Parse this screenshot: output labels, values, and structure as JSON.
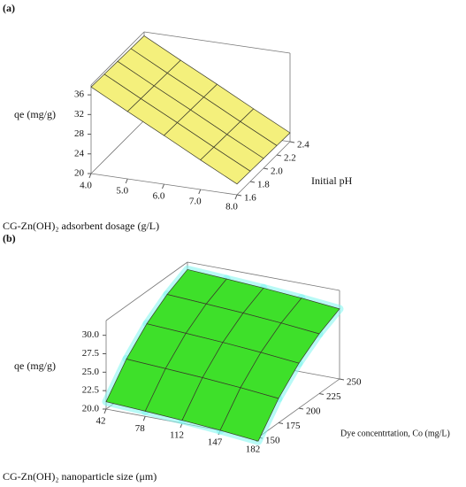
{
  "chart_data": [
    {
      "type": "surface",
      "panel_label": "(a)",
      "x_label": "CG-Zn(OH)₂ adsorbent dosage (g/L)",
      "y_label": "Initial pH",
      "z_label": "qe (mg/g)",
      "color": "#f4f07c",
      "x": [
        4,
        5,
        6,
        7,
        8
      ],
      "y": [
        1.6,
        1.8,
        2.0,
        2.2,
        2.4
      ],
      "z": [
        [
          37.6,
          33.7,
          29.9,
          26.0,
          22.2
        ],
        [
          37.5,
          33.6,
          29.8,
          25.9,
          22.1
        ],
        [
          37.4,
          33.5,
          29.7,
          25.8,
          22.0
        ],
        [
          37.3,
          33.4,
          29.6,
          25.7,
          21.9
        ],
        [
          37.2,
          33.3,
          29.5,
          25.6,
          21.8
        ]
      ],
      "xlim": [
        4,
        8
      ],
      "ylim": [
        1.6,
        2.4
      ],
      "zlim": [
        20,
        38
      ],
      "xticks": [
        {
          "value": 4,
          "label": "4.0"
        },
        {
          "value": 5,
          "label": "5.0"
        },
        {
          "value": 6,
          "label": "6.0"
        },
        {
          "value": 7,
          "label": "7.0"
        },
        {
          "value": 8,
          "label": "8.0"
        }
      ],
      "yticks": [
        1.6,
        1.8,
        {
          "value": 2,
          "label": "2.0"
        },
        2.2,
        2.4
      ],
      "zticks": [
        20,
        24,
        28,
        32,
        36
      ]
    },
    {
      "type": "surface",
      "panel_label": "(b)",
      "x_label": "CG-Zn(OH)₂ nanoparticle size (μm)",
      "y_label": "Dye concentrtation, Co (mg/L)",
      "z_label": "qe (mg/g)",
      "color": "#3ee02a",
      "glow": "#7ff7f0",
      "x": [
        42,
        78,
        112,
        147,
        182
      ],
      "y": [
        150,
        175,
        200,
        225,
        250
      ],
      "z": [
        [
          21.0,
          20.7,
          20.4,
          20.0,
          19.5
        ],
        [
          24.8,
          24.5,
          24.2,
          23.8,
          23.3
        ],
        [
          27.6,
          27.3,
          27.0,
          26.6,
          26.1
        ],
        [
          29.6,
          29.3,
          29.0,
          28.6,
          28.1
        ],
        [
          31.0,
          30.7,
          30.4,
          30.0,
          29.5
        ]
      ],
      "xlim": [
        42,
        182
      ],
      "ylim": [
        150,
        250
      ],
      "zlim": [
        20,
        32
      ],
      "xticks": [
        42,
        78,
        112,
        147,
        182
      ],
      "yticks": [
        150,
        175,
        200,
        225,
        250
      ],
      "zticks": [
        {
          "value": 20,
          "label": "20.0"
        },
        22.5,
        {
          "value": 25,
          "label": "25.0"
        },
        27.5,
        {
          "value": 30,
          "label": "30.0"
        }
      ]
    }
  ]
}
